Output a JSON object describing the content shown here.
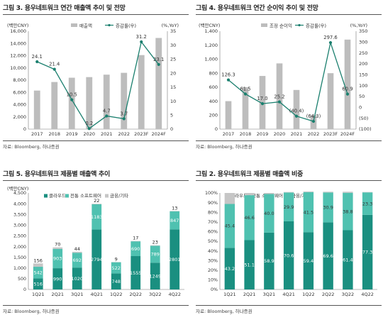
{
  "chart_data": [
    {
      "type": "bar+line",
      "title": "그림 3. 용우네트워크 연간 매출액 추이 및 전망",
      "left_unit": "(백만CNY)",
      "right_unit": "(%,YoY)",
      "legend": [
        "매출액",
        "증감률(우)"
      ],
      "categories": [
        "2017",
        "2018",
        "2019",
        "2020",
        "2021",
        "2022",
        "2023F",
        "2024F"
      ],
      "bars": [
        6300,
        7700,
        8400,
        8500,
        8900,
        9200,
        12100,
        14900
      ],
      "line": [
        24.1,
        21.4,
        10.5,
        0.2,
        4.7,
        3.7,
        31.2,
        23.1
      ],
      "line_labels": [
        "24.1",
        "21.4",
        "10.5",
        "0.2",
        "4.7",
        "3.7",
        "31.2",
        "23.1"
      ],
      "ylim_left": [
        0,
        16000
      ],
      "yticks_left": [
        "0",
        "2,000",
        "4,000",
        "6,000",
        "8,000",
        "10,000",
        "12,000",
        "14,000",
        "16,000"
      ],
      "ylim_right": [
        0,
        35
      ],
      "yticks_right": [
        "0",
        "5",
        "10",
        "15",
        "20",
        "25",
        "30",
        "35"
      ],
      "source": "자료: Bloomberg, 하나증권"
    },
    {
      "type": "bar+line",
      "title": "그림 4. 용우네트워크 연간 순이익 추이 및 전망",
      "left_unit": "(백만CNY)",
      "right_unit": "(%,YoY)",
      "legend": [
        "조정 순이익",
        "증감률(우)"
      ],
      "categories": [
        "2017",
        "2018",
        "2019",
        "2020",
        "2021",
        "2022",
        "2023F",
        "2024F"
      ],
      "bars": [
        400,
        600,
        760,
        940,
        560,
        200,
        800,
        1280
      ],
      "line": [
        126.3,
        61.5,
        17.0,
        25.2,
        -40.4,
        -64.3,
        297.6,
        60.9
      ],
      "line_labels": [
        "126.3",
        "61.5",
        "17.0",
        "25.2",
        "(40.4)",
        "(64.3)",
        "297.6",
        "60.9"
      ],
      "ylim_left": [
        0,
        1400
      ],
      "yticks_left": [
        "0",
        "200",
        "400",
        "600",
        "800",
        "1,000",
        "1,200",
        "1,400"
      ],
      "ylim_right": [
        -100,
        350
      ],
      "yticks_right": [
        "(100)",
        "(50)",
        "0",
        "50",
        "100",
        "150",
        "200",
        "250",
        "300",
        "350"
      ],
      "source": "자료: Bloomberg, 하나증권"
    },
    {
      "type": "stacked-bar",
      "title": "그림 5. 용우네트워크 제품별 매출액 추이",
      "left_unit": "(백만CNY)",
      "legend": [
        "클라우드",
        "전통 소프트웨어",
        "금융/기타"
      ],
      "categories": [
        "1Q21",
        "2Q21",
        "3Q21",
        "4Q21",
        "1Q22",
        "2Q22",
        "3Q22",
        "4Q22"
      ],
      "series": [
        {
          "name": "클라우드",
          "values": [
            516,
            990,
            1020,
            2794,
            748,
            1555,
            1249,
            2801
          ]
        },
        {
          "name": "전통 소프트웨어",
          "values": [
            542,
            903,
            692,
            1183,
            522,
            690,
            789,
            847
          ]
        },
        {
          "name": "금융/기타",
          "values": [
            156,
            70,
            44,
            22,
            9,
            17,
            23,
            13
          ]
        }
      ],
      "labels": [
        [
          "516",
          "990",
          "1020",
          "2794",
          "748",
          "1555",
          "1249",
          "2801"
        ],
        [
          "542",
          "903",
          "692",
          "1183",
          "522",
          "690",
          "789",
          "847"
        ],
        [
          "156",
          "70",
          "44",
          "22",
          "9",
          "17",
          "23",
          "13"
        ]
      ],
      "ylim": [
        0,
        4500
      ],
      "yticks": [
        "0",
        "500",
        "1,000",
        "1,500",
        "2,000",
        "2,500",
        "3,000",
        "3,500",
        "4,000",
        "4,500"
      ],
      "source": "자료: Bloomberg, 하나증권"
    },
    {
      "type": "stacked-bar-100",
      "title": "그림 2. 용우네트워크 제품별 매출액 비중",
      "legend": [
        "클라우드",
        "전통 소프트웨어",
        "금융/기타"
      ],
      "categories": [
        "1Q21",
        "2Q21",
        "3Q21",
        "4Q21",
        "1Q22",
        "2Q22",
        "3Q22",
        "4Q22"
      ],
      "series": [
        {
          "name": "클라우드",
          "values": [
            43.2,
            51.1,
            58.9,
            70.6,
            59.4,
            69.6,
            61.4,
            77.3
          ]
        },
        {
          "name": "전통 소프트웨어",
          "values": [
            45.4,
            46.6,
            40.0,
            29.9,
            41.5,
            30.9,
            38.8,
            23.3
          ]
        },
        {
          "name": "금융/기타",
          "values": [
            11.4,
            2.3,
            1.1,
            0.5,
            0.7,
            0.8,
            1.1,
            0.4
          ]
        }
      ],
      "labels": [
        [
          "43.2",
          "51.1",
          "58.9",
          "70.6",
          "59.4",
          "69.6",
          "61.4",
          "77.3"
        ],
        [
          "45.4",
          "46.6",
          "40.0",
          "29.9",
          "41.5",
          "30.9",
          "38.8",
          "23.3"
        ],
        [
          "",
          "",
          "",
          "",
          "",
          "",
          "",
          ""
        ]
      ],
      "ylim": [
        0,
        100
      ],
      "yticks": [
        "0%",
        "10%",
        "20%",
        "30%",
        "40%",
        "50%",
        "60%",
        "70%",
        "80%",
        "90%",
        "100%"
      ],
      "source": "자료: Bloomberg, 하나증권"
    }
  ]
}
